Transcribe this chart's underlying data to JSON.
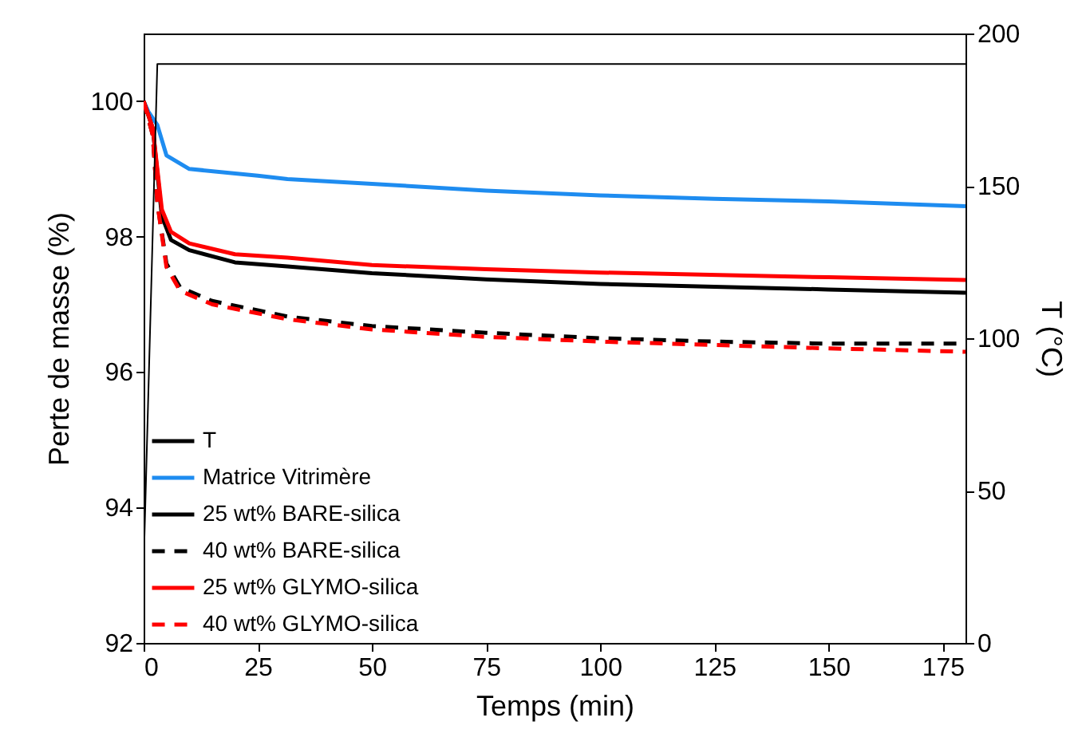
{
  "chart_data": {
    "type": "line",
    "xlabel": "Temps (min)",
    "ylabel": "Perte de masse (%)",
    "y2label": "T (°C)",
    "xlim": [
      0,
      180
    ],
    "xticks": [
      0,
      25,
      50,
      75,
      100,
      125,
      150,
      175
    ],
    "ylim": [
      92,
      101
    ],
    "yticks": [
      92,
      94,
      96,
      98,
      100
    ],
    "y2lim": [
      0,
      200
    ],
    "y2ticks": [
      0,
      50,
      100,
      150,
      200
    ],
    "grid": false,
    "legend": "bottom left",
    "series": [
      {
        "name": "T",
        "color": "#000000",
        "axis": "y2",
        "line_style": "solid",
        "x": [
          0,
          3,
          180
        ],
        "values": [
          25,
          190,
          190
        ]
      },
      {
        "name": "Matrice Vitrimère",
        "color": "#1e8cf0",
        "line_style": "solid",
        "x": [
          0,
          1,
          3,
          5,
          10,
          25,
          31.5,
          50,
          75,
          100,
          125,
          150,
          180
        ],
        "values": [
          100,
          99.85,
          99.65,
          99.2,
          99.0,
          98.9,
          98.85,
          98.78,
          98.68,
          98.61,
          98.56,
          98.52,
          98.45
        ]
      },
      {
        "name": "25 wt% BARE-silica",
        "color": "#000000",
        "line_style": "solid",
        "x": [
          0,
          2,
          4,
          6,
          10,
          20,
          31.5,
          50,
          75,
          100,
          150,
          180
        ],
        "values": [
          100,
          99.6,
          98.3,
          97.95,
          97.8,
          97.62,
          97.56,
          97.46,
          97.37,
          97.3,
          97.22,
          97.17
        ]
      },
      {
        "name": "40 wt% BARE-silica",
        "color": "#000000",
        "line_style": "dashed",
        "x": [
          0,
          2,
          3,
          5,
          8,
          15,
          31.5,
          50,
          75,
          100,
          125,
          150,
          180
        ],
        "values": [
          100,
          99.5,
          98.5,
          97.6,
          97.25,
          97.05,
          96.82,
          96.68,
          96.58,
          96.5,
          96.45,
          96.42,
          96.42
        ]
      },
      {
        "name": "25 wt% GLYMO-silica",
        "color": "#ff0000",
        "line_style": "solid",
        "x": [
          0,
          2,
          4,
          6,
          10,
          20,
          31.5,
          50,
          75,
          100,
          150,
          180
        ],
        "values": [
          100,
          99.6,
          98.4,
          98.07,
          97.9,
          97.74,
          97.69,
          97.58,
          97.52,
          97.47,
          97.4,
          97.36
        ]
      },
      {
        "name": "40 wt% GLYMO-silica",
        "color": "#ff0000",
        "line_style": "dashed",
        "x": [
          0,
          2,
          3,
          5,
          8,
          15,
          31.5,
          50,
          75,
          100,
          125,
          150,
          180
        ],
        "values": [
          100,
          99.5,
          98.5,
          97.55,
          97.2,
          97.0,
          96.78,
          96.63,
          96.52,
          96.45,
          96.4,
          96.35,
          96.3
        ]
      }
    ]
  }
}
